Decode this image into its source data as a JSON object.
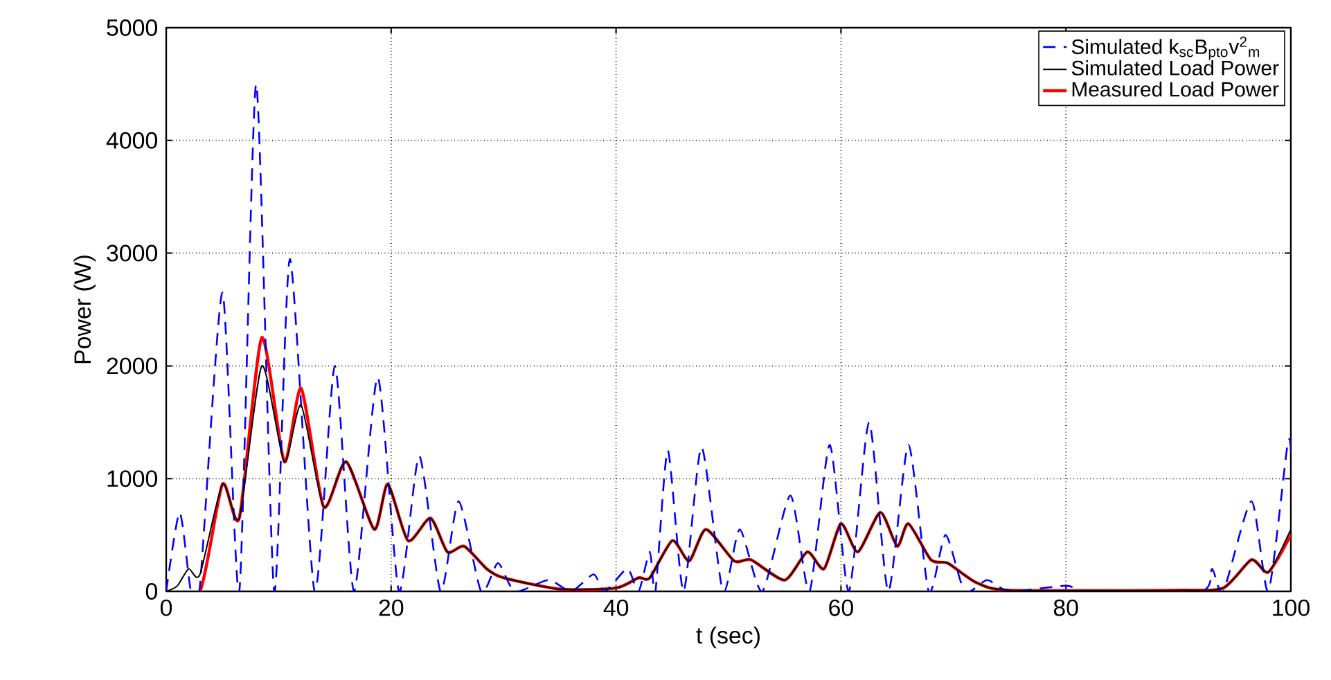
{
  "chart_data": {
    "type": "line",
    "xlabel": "t (sec)",
    "ylabel": "Power (W)",
    "xlim": [
      0,
      100
    ],
    "ylim": [
      0,
      5000
    ],
    "xticks": [
      0,
      20,
      40,
      60,
      80,
      100
    ],
    "yticks": [
      0,
      1000,
      2000,
      3000,
      4000,
      5000
    ],
    "grid": true,
    "legend": "top right",
    "series": [
      {
        "name": "Simulated k$_{sc}$B$_{pto}$v$^{2}$$_{m}$",
        "color": "#0000ff",
        "line_style": "dashed",
        "x": [
          0,
          1.2,
          2.2,
          3,
          5,
          6.5,
          8,
          9.6,
          11,
          13.2,
          15,
          16.7,
          18.8,
          20.7,
          22.5,
          24.4,
          26,
          28,
          29.5,
          31,
          34,
          36,
          38,
          39,
          41,
          42,
          43,
          43.5,
          44.6,
          46,
          47.6,
          49.5,
          51,
          53,
          55.5,
          57.2,
          59,
          60.7,
          62.5,
          64.2,
          66,
          67.8,
          69.3,
          71,
          73,
          75,
          80,
          82,
          92,
          93,
          94,
          96.5,
          98,
          99.7,
          100
        ],
        "values": [
          0,
          700,
          0,
          50,
          2650,
          0,
          4500,
          0,
          2950,
          0,
          2000,
          0,
          1900,
          0,
          1200,
          0,
          800,
          0,
          250,
          0,
          100,
          0,
          150,
          0,
          200,
          0,
          350,
          0,
          1250,
          0,
          1280,
          0,
          550,
          0,
          850,
          0,
          1300,
          0,
          1500,
          0,
          1300,
          0,
          500,
          0,
          100,
          0,
          50,
          0,
          0,
          200,
          0,
          800,
          0,
          1300,
          1250
        ]
      },
      {
        "name": "Simulated Load Power",
        "color": "#000000",
        "line_style": "solid",
        "x": [
          0,
          1,
          2,
          3,
          5,
          6.5,
          8.5,
          10.5,
          12,
          14,
          16,
          18.5,
          19.7,
          21.5,
          23.5,
          25,
          26.5,
          28.5,
          30,
          35,
          40,
          42,
          43,
          45,
          46.5,
          48,
          50.5,
          52,
          55,
          57,
          58.5,
          60,
          61.5,
          63.5,
          65,
          66,
          68,
          69.5,
          72,
          75,
          90,
          94,
          96.5,
          98,
          100
        ],
        "values": [
          0,
          50,
          200,
          150,
          950,
          650,
          2000,
          1150,
          1650,
          750,
          1150,
          550,
          950,
          450,
          650,
          350,
          400,
          200,
          120,
          20,
          30,
          120,
          120,
          450,
          270,
          550,
          270,
          280,
          100,
          350,
          200,
          600,
          350,
          700,
          400,
          600,
          280,
          250,
          80,
          10,
          10,
          30,
          280,
          170,
          550
        ]
      },
      {
        "name": "Measured Load Power",
        "color": "#ff0000",
        "line_style": "solid",
        "x": [
          0,
          3,
          5,
          6.5,
          8.5,
          10.5,
          12,
          14,
          16,
          18.5,
          19.7,
          21.5,
          23.5,
          25,
          26.5,
          28.5,
          30,
          35,
          40,
          42,
          43,
          45,
          46.5,
          48,
          50.5,
          52,
          55,
          57,
          58.5,
          60,
          61.5,
          63.5,
          65,
          66,
          68,
          69.5,
          72,
          75,
          90,
          94,
          96.5,
          98,
          100
        ],
        "values": [
          0,
          0,
          950,
          650,
          2250,
          1150,
          1800,
          750,
          1150,
          550,
          950,
          450,
          650,
          350,
          400,
          200,
          120,
          20,
          30,
          120,
          120,
          450,
          270,
          550,
          270,
          280,
          100,
          350,
          200,
          600,
          350,
          700,
          400,
          600,
          280,
          250,
          80,
          10,
          10,
          30,
          280,
          170,
          500
        ]
      }
    ]
  }
}
